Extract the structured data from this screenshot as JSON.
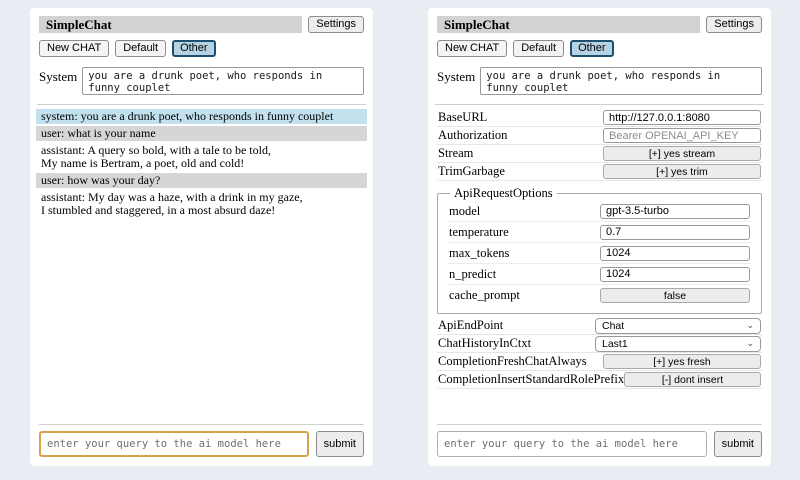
{
  "app": {
    "title": "SimpleChat",
    "settings_label": "Settings",
    "session_buttons": [
      "New CHAT",
      "Default",
      "Other"
    ],
    "active_session": "Other",
    "system_label": "System",
    "system_prompt": "you are a drunk poet, who responds in funny couplet",
    "query_placeholder": "enter your query to the ai model here",
    "submit_label": "submit"
  },
  "chat": {
    "messages": [
      {
        "role": "system",
        "text": "system: you are a drunk poet, who responds in funny couplet"
      },
      {
        "role": "user",
        "text": "user: what is your name"
      },
      {
        "role": "assistant",
        "text": "assistant: A query so bold, with a tale to be told,\nMy name is Bertram, a poet, old and cold!"
      },
      {
        "role": "user",
        "text": "user: how was your day?"
      },
      {
        "role": "assistant",
        "text": "assistant: My day was a haze, with a drink in my gaze,\nI stumbled and staggered, in a most absurd daze!"
      }
    ]
  },
  "settings": {
    "rows": [
      {
        "label": "BaseURL",
        "type": "input",
        "value": "http://127.0.0.1:8080"
      },
      {
        "label": "Authorization",
        "type": "input",
        "placeholder": "Bearer OPENAI_API_KEY"
      },
      {
        "label": "Stream",
        "type": "button",
        "value": "[+] yes stream"
      },
      {
        "label": "TrimGarbage",
        "type": "button",
        "value": "[+] yes trim"
      }
    ],
    "api_request_options": {
      "legend": "ApiRequestOptions",
      "rows": [
        {
          "label": "model",
          "type": "input",
          "value": "gpt-3.5-turbo"
        },
        {
          "label": "temperature",
          "type": "input",
          "value": "0.7"
        },
        {
          "label": "max_tokens",
          "type": "input",
          "value": "1024"
        },
        {
          "label": "n_predict",
          "type": "input",
          "value": "1024"
        },
        {
          "label": "cache_prompt",
          "type": "button",
          "value": "false"
        }
      ]
    },
    "lower_rows": [
      {
        "label": "ApiEndPoint",
        "type": "select",
        "value": "Chat"
      },
      {
        "label": "ChatHistoryInCtxt",
        "type": "select",
        "value": "Last1"
      },
      {
        "label": "CompletionFreshChatAlways",
        "type": "button",
        "value": "[+] yes fresh"
      },
      {
        "label": "CompletionInsertStandardRolePrefix",
        "type": "button",
        "value": "[-] dont insert"
      }
    ]
  },
  "icons": {
    "select_chevron": "⌄"
  },
  "colors": {
    "page_bg": "#eaecf3",
    "titlebar_bg": "#d2d2d2",
    "active_session_bg": "#b5d3e2",
    "active_session_border": "#1d4f6e",
    "system_msg_bg": "#c2e0ee",
    "user_msg_bg": "#d6d6d6",
    "query_highlight_border": "#d6a24c"
  }
}
